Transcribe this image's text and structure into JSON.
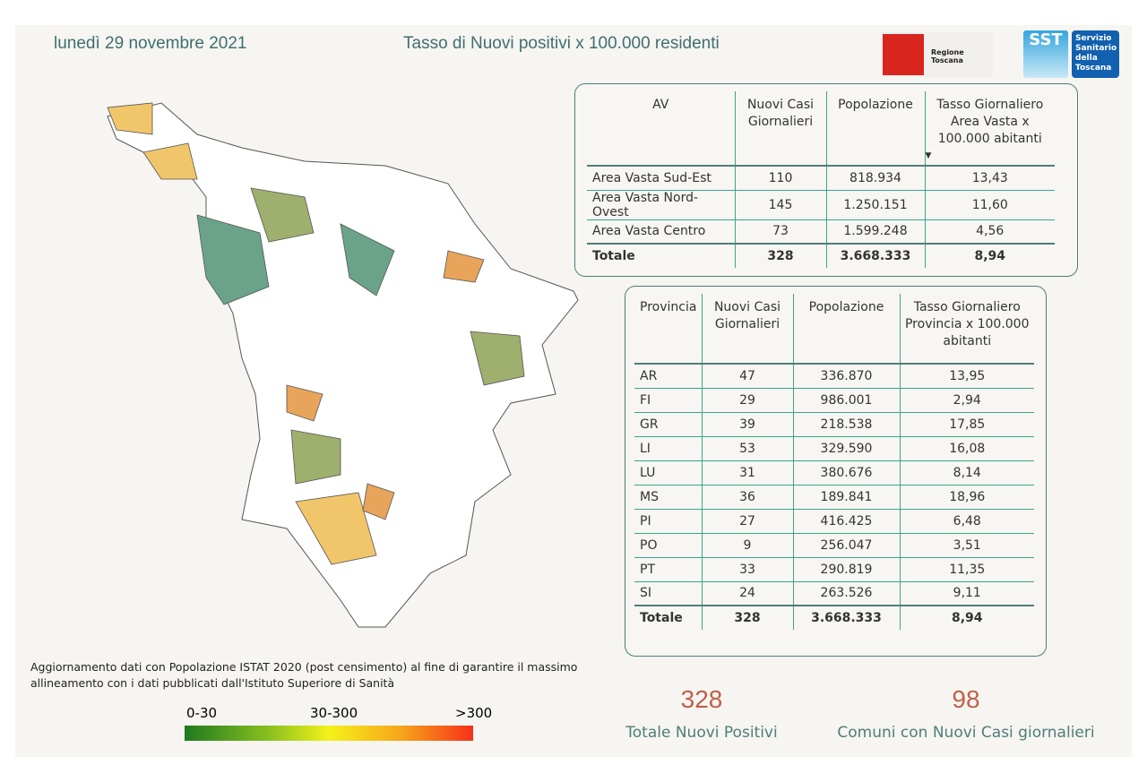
{
  "header": {
    "date": "lunedì 29 novembre 2021",
    "title": "Tasso di Nuovi positivi x 100.000 residenti",
    "logo_regione": "Regione Toscana",
    "logo_sst": "SST",
    "logo_sst_text": "Servizio Sanitario della Toscana"
  },
  "av_table": {
    "headers": [
      "AV",
      "Nuovi Casi Giornalieri",
      "Popolazione",
      "Tasso Giornaliero Area Vasta x 100.000 abitanti"
    ],
    "rows": [
      [
        "Area Vasta Sud-Est",
        "110",
        "818.934",
        "13,43"
      ],
      [
        "Area Vasta Nord-Ovest",
        "145",
        "1.250.151",
        "11,60"
      ],
      [
        "Area Vasta Centro",
        "73",
        "1.599.248",
        "4,56"
      ]
    ],
    "total": [
      "Totale",
      "328",
      "3.668.333",
      "8,94"
    ]
  },
  "prov_table": {
    "headers": [
      "Provincia",
      "Nuovi Casi Giornalieri",
      "Popolazione",
      "Tasso Giornaliero Provincia x 100.000 abitanti"
    ],
    "rows": [
      [
        "AR",
        "47",
        "336.870",
        "13,95"
      ],
      [
        "FI",
        "29",
        "986.001",
        "2,94"
      ],
      [
        "GR",
        "39",
        "218.538",
        "17,85"
      ],
      [
        "LI",
        "53",
        "329.590",
        "16,08"
      ],
      [
        "LU",
        "31",
        "380.676",
        "8,14"
      ],
      [
        "MS",
        "36",
        "189.841",
        "18,96"
      ],
      [
        "PI",
        "27",
        "416.425",
        "6,48"
      ],
      [
        "PO",
        "9",
        "256.047",
        "3,51"
      ],
      [
        "PT",
        "33",
        "290.819",
        "11,35"
      ],
      [
        "SI",
        "24",
        "263.526",
        "9,11"
      ]
    ],
    "total": [
      "Totale",
      "328",
      "3.668.333",
      "8,94"
    ]
  },
  "kpis": [
    {
      "value": "328",
      "label": "Totale Nuovi Positivi"
    },
    {
      "value": "98",
      "label": "Comuni con Nuovi Casi giornalieri"
    }
  ],
  "note": "Aggiornamento dati con Popolazione ISTAT 2020 (post censimento) al fine di garantire il massimo allineamento con i dati pubblicati dall'Istituto Superiore di Sanità",
  "legend": {
    "labels": [
      "0-30",
      "30-300",
      ">300"
    ],
    "colors": [
      "#1f7a1f",
      "#f4f21a",
      "#f5311a"
    ]
  }
}
